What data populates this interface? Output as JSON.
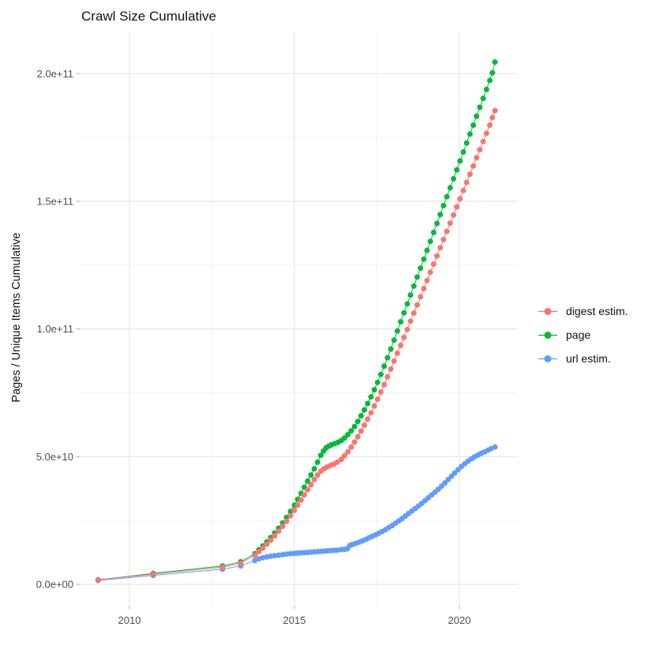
{
  "title": "Crawl Size Cumulative",
  "y_axis": {
    "label": "Pages / Unique Items Cumulative",
    "tick_labels": [
      "0.0e+00",
      "5.0e+10",
      "1.0e+11",
      "1.5e+11",
      "2.0e+11"
    ]
  },
  "x_axis": {
    "tick_labels": [
      "2010",
      "2015",
      "2020"
    ]
  },
  "legend": {
    "items": [
      {
        "label": "digest estim.",
        "color": "#F8766D"
      },
      {
        "label": "page",
        "color": "#00BA38"
      },
      {
        "label": "url estim.",
        "color": "#619CFF"
      }
    ]
  },
  "chart_data": {
    "type": "line",
    "title": "Crawl Size Cumulative",
    "xlabel": "",
    "ylabel": "Pages / Unique Items Cumulative",
    "x_ticks": [
      2010,
      2015,
      2020
    ],
    "x_tick_labels": [
      "2010",
      "2015",
      "2020"
    ],
    "minor_x_ticks": [
      2012.5,
      2017.5
    ],
    "y_ticks_e9": [
      0,
      50,
      100,
      150,
      200
    ],
    "y_tick_labels": [
      "0.0e+00",
      "5.0e+10",
      "1.0e+11",
      "1.5e+11",
      "2.0e+11"
    ],
    "minor_y_ticks_e9": [
      25,
      75,
      125,
      175
    ],
    "xlim": [
      2008.5,
      2021.75
    ],
    "ylim_e9": [
      -8,
      216
    ],
    "grid": true,
    "legend_position": "right-center",
    "value_unit": "point values given as [year, count_in_billions(1e9)]",
    "series": [
      {
        "name": "digest estim.",
        "color": "#F8766D",
        "points": [
          [
            2009.05,
            1.8
          ],
          [
            2010.72,
            4.0
          ],
          [
            2012.82,
            6.7
          ],
          [
            2013.37,
            8.2
          ],
          [
            2013.8,
            11.4
          ],
          [
            2013.92,
            12.8
          ],
          [
            2014.04,
            14.2
          ],
          [
            2014.16,
            15.7
          ],
          [
            2014.28,
            17.3
          ],
          [
            2014.4,
            19.0
          ],
          [
            2014.52,
            20.8
          ],
          [
            2014.64,
            22.7
          ],
          [
            2014.76,
            24.7
          ],
          [
            2014.88,
            26.8
          ],
          [
            2015.0,
            29.0
          ],
          [
            2015.1,
            31.0
          ],
          [
            2015.2,
            33.0
          ],
          [
            2015.3,
            35.0
          ],
          [
            2015.4,
            37.0
          ],
          [
            2015.5,
            39.0
          ],
          [
            2015.6,
            41.0
          ],
          [
            2015.7,
            42.8
          ],
          [
            2015.8,
            44.3
          ],
          [
            2015.9,
            45.3
          ],
          [
            2016.0,
            46.0
          ],
          [
            2016.1,
            46.6
          ],
          [
            2016.2,
            47.1
          ],
          [
            2016.3,
            47.8
          ],
          [
            2016.42,
            48.9
          ],
          [
            2016.52,
            50.3
          ],
          [
            2016.62,
            51.9
          ],
          [
            2016.72,
            53.7
          ],
          [
            2016.82,
            55.7
          ],
          [
            2016.92,
            57.8
          ],
          [
            2017.02,
            60.0
          ],
          [
            2017.12,
            62.3
          ],
          [
            2017.22,
            64.7
          ],
          [
            2017.32,
            67.2
          ],
          [
            2017.42,
            69.8
          ],
          [
            2017.52,
            72.5
          ],
          [
            2017.62,
            75.3
          ],
          [
            2017.72,
            78.2
          ],
          [
            2017.82,
            81.2
          ],
          [
            2017.92,
            84.3
          ],
          [
            2018.02,
            87.4
          ],
          [
            2018.12,
            90.5
          ],
          [
            2018.22,
            93.6
          ],
          [
            2018.32,
            96.7
          ],
          [
            2018.42,
            99.8
          ],
          [
            2018.52,
            103.0
          ],
          [
            2018.62,
            106.2
          ],
          [
            2018.72,
            109.4
          ],
          [
            2018.82,
            112.6
          ],
          [
            2018.92,
            115.8
          ],
          [
            2019.02,
            119.0
          ],
          [
            2019.12,
            122.2
          ],
          [
            2019.22,
            125.4
          ],
          [
            2019.32,
            128.6
          ],
          [
            2019.42,
            131.8
          ],
          [
            2019.52,
            135.0
          ],
          [
            2019.62,
            138.2
          ],
          [
            2019.72,
            141.4
          ],
          [
            2019.82,
            144.6
          ],
          [
            2019.92,
            147.8
          ],
          [
            2020.02,
            151.0
          ],
          [
            2020.12,
            154.2
          ],
          [
            2020.22,
            157.4
          ],
          [
            2020.32,
            160.6
          ],
          [
            2020.42,
            163.8
          ],
          [
            2020.52,
            167.0
          ],
          [
            2020.62,
            170.2
          ],
          [
            2020.72,
            173.4
          ],
          [
            2020.82,
            176.6
          ],
          [
            2020.92,
            179.8
          ],
          [
            2021.0,
            182.8
          ],
          [
            2021.08,
            185.5
          ]
        ]
      },
      {
        "name": "page",
        "color": "#00BA38",
        "points": [
          [
            2009.05,
            1.7
          ],
          [
            2010.72,
            4.3
          ],
          [
            2012.82,
            7.2
          ],
          [
            2013.37,
            8.8
          ],
          [
            2013.8,
            12.0
          ],
          [
            2013.92,
            13.5
          ],
          [
            2014.04,
            15.0
          ],
          [
            2014.16,
            16.6
          ],
          [
            2014.28,
            18.3
          ],
          [
            2014.4,
            20.1
          ],
          [
            2014.52,
            22.0
          ],
          [
            2014.64,
            24.0
          ],
          [
            2014.76,
            26.2
          ],
          [
            2014.88,
            28.5
          ],
          [
            2015.0,
            31.0
          ],
          [
            2015.1,
            33.3
          ],
          [
            2015.2,
            35.6
          ],
          [
            2015.3,
            38.0
          ],
          [
            2015.4,
            40.4
          ],
          [
            2015.5,
            42.8
          ],
          [
            2015.6,
            45.2
          ],
          [
            2015.7,
            47.8
          ],
          [
            2015.8,
            50.5
          ],
          [
            2015.88,
            52.2
          ],
          [
            2015.96,
            53.4
          ],
          [
            2016.04,
            54.1
          ],
          [
            2016.12,
            54.6
          ],
          [
            2016.22,
            55.1
          ],
          [
            2016.32,
            55.6
          ],
          [
            2016.42,
            56.3
          ],
          [
            2016.52,
            57.3
          ],
          [
            2016.62,
            58.6
          ],
          [
            2016.72,
            60.1
          ],
          [
            2016.82,
            61.8
          ],
          [
            2016.92,
            63.8
          ],
          [
            2017.02,
            66.0
          ],
          [
            2017.12,
            68.3
          ],
          [
            2017.22,
            70.8
          ],
          [
            2017.32,
            73.4
          ],
          [
            2017.42,
            76.2
          ],
          [
            2017.52,
            79.1
          ],
          [
            2017.62,
            82.2
          ],
          [
            2017.72,
            85.4
          ],
          [
            2017.82,
            88.7
          ],
          [
            2017.92,
            92.1
          ],
          [
            2018.02,
            95.6
          ],
          [
            2018.12,
            99.2
          ],
          [
            2018.22,
            102.8
          ],
          [
            2018.32,
            106.3
          ],
          [
            2018.42,
            109.8
          ],
          [
            2018.52,
            113.3
          ],
          [
            2018.62,
            116.8
          ],
          [
            2018.72,
            120.3
          ],
          [
            2018.82,
            123.8
          ],
          [
            2018.92,
            127.3
          ],
          [
            2019.02,
            130.8
          ],
          [
            2019.12,
            134.3
          ],
          [
            2019.22,
            137.8
          ],
          [
            2019.32,
            141.3
          ],
          [
            2019.42,
            144.8
          ],
          [
            2019.52,
            148.3
          ],
          [
            2019.62,
            151.8
          ],
          [
            2019.72,
            155.3
          ],
          [
            2019.82,
            158.8
          ],
          [
            2019.92,
            162.3
          ],
          [
            2020.02,
            165.8
          ],
          [
            2020.12,
            169.3
          ],
          [
            2020.22,
            172.8
          ],
          [
            2020.32,
            176.3
          ],
          [
            2020.42,
            179.8
          ],
          [
            2020.52,
            183.3
          ],
          [
            2020.62,
            186.8
          ],
          [
            2020.72,
            190.3
          ],
          [
            2020.82,
            193.8
          ],
          [
            2020.92,
            197.3
          ],
          [
            2021.0,
            200.3
          ],
          [
            2021.08,
            204.5
          ]
        ]
      },
      {
        "name": "url estim.",
        "color": "#619CFF",
        "points": [
          [
            2009.05,
            1.5
          ],
          [
            2010.72,
            3.5
          ],
          [
            2012.82,
            5.9
          ],
          [
            2013.37,
            7.2
          ],
          [
            2013.8,
            9.3
          ],
          [
            2013.92,
            10.0
          ],
          [
            2014.04,
            10.4
          ],
          [
            2014.16,
            10.7
          ],
          [
            2014.28,
            11.0
          ],
          [
            2014.4,
            11.2
          ],
          [
            2014.52,
            11.4
          ],
          [
            2014.64,
            11.6
          ],
          [
            2014.76,
            11.8
          ],
          [
            2014.88,
            12.0
          ],
          [
            2015.0,
            12.1
          ],
          [
            2015.1,
            12.2
          ],
          [
            2015.2,
            12.3
          ],
          [
            2015.3,
            12.4
          ],
          [
            2015.4,
            12.5
          ],
          [
            2015.5,
            12.6
          ],
          [
            2015.6,
            12.7
          ],
          [
            2015.7,
            12.8
          ],
          [
            2015.8,
            12.9
          ],
          [
            2015.9,
            13.0
          ],
          [
            2016.0,
            13.1
          ],
          [
            2016.1,
            13.2
          ],
          [
            2016.2,
            13.3
          ],
          [
            2016.3,
            13.4
          ],
          [
            2016.42,
            13.6
          ],
          [
            2016.52,
            13.7
          ],
          [
            2016.6,
            13.9
          ],
          [
            2016.68,
            15.2
          ],
          [
            2016.76,
            15.6
          ],
          [
            2016.86,
            16.0
          ],
          [
            2016.96,
            16.5
          ],
          [
            2017.06,
            17.0
          ],
          [
            2017.16,
            17.6
          ],
          [
            2017.26,
            18.2
          ],
          [
            2017.36,
            18.8
          ],
          [
            2017.46,
            19.4
          ],
          [
            2017.56,
            20.0
          ],
          [
            2017.66,
            20.7
          ],
          [
            2017.76,
            21.4
          ],
          [
            2017.86,
            22.2
          ],
          [
            2017.96,
            23.0
          ],
          [
            2018.06,
            23.9
          ],
          [
            2018.16,
            24.8
          ],
          [
            2018.26,
            25.7
          ],
          [
            2018.36,
            26.7
          ],
          [
            2018.46,
            27.7
          ],
          [
            2018.56,
            28.7
          ],
          [
            2018.66,
            29.7
          ],
          [
            2018.76,
            30.7
          ],
          [
            2018.86,
            31.7
          ],
          [
            2018.96,
            32.8
          ],
          [
            2019.06,
            33.9
          ],
          [
            2019.16,
            35.0
          ],
          [
            2019.26,
            36.1
          ],
          [
            2019.36,
            37.2
          ],
          [
            2019.46,
            38.4
          ],
          [
            2019.56,
            39.7
          ],
          [
            2019.66,
            41.0
          ],
          [
            2019.76,
            42.3
          ],
          [
            2019.86,
            43.6
          ],
          [
            2019.96,
            44.9
          ],
          [
            2020.06,
            46.1
          ],
          [
            2020.16,
            47.2
          ],
          [
            2020.26,
            48.2
          ],
          [
            2020.36,
            49.1
          ],
          [
            2020.46,
            49.9
          ],
          [
            2020.56,
            50.6
          ],
          [
            2020.66,
            51.3
          ],
          [
            2020.76,
            51.9
          ],
          [
            2020.86,
            52.5
          ],
          [
            2020.96,
            53.1
          ],
          [
            2021.08,
            53.8
          ]
        ]
      }
    ]
  }
}
